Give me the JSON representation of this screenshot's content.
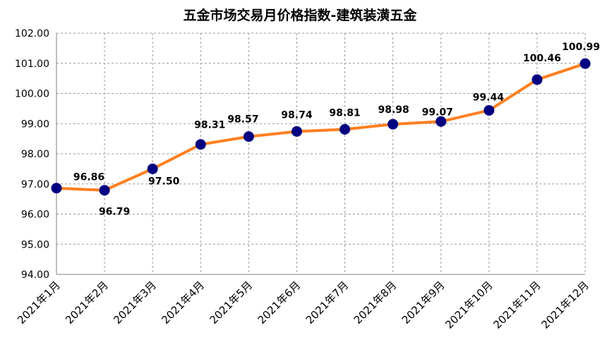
{
  "chart_data": {
    "type": "line",
    "title": "五金市场交易月价格指数-建筑装潢五金",
    "categories": [
      "2021年1月",
      "2021年2月",
      "2021年3月",
      "2021年4月",
      "2021年5月",
      "2021年6月",
      "2021年7月",
      "2021年8月",
      "2021年9月",
      "2021年10月",
      "2021年11月",
      "2021年12月"
    ],
    "values": [
      96.86,
      96.79,
      97.5,
      98.31,
      98.57,
      98.74,
      98.81,
      98.98,
      99.07,
      99.44,
      100.46,
      100.99
    ],
    "value_labels": [
      "96.86",
      "96.79",
      "97.50",
      "98.31",
      "98.57",
      "98.74",
      "98.81",
      "98.98",
      "99.07",
      "99.44",
      "100.46",
      "100.99"
    ],
    "color": "#ff7f1f",
    "marker_color": "#000080",
    "ylim": [
      94,
      102
    ],
    "yticks": [
      {
        "value": 94,
        "label": "94.00"
      },
      {
        "value": 95,
        "label": "95.00"
      },
      {
        "value": 96,
        "label": "96.00"
      },
      {
        "value": 97,
        "label": "97.00"
      },
      {
        "value": 98,
        "label": "98.00"
      },
      {
        "value": 99,
        "label": "99.00"
      },
      {
        "value": 100,
        "label": "100.00"
      },
      {
        "value": 101,
        "label": "101.00"
      },
      {
        "value": 102,
        "label": "102.00"
      }
    ],
    "grid": true
  }
}
